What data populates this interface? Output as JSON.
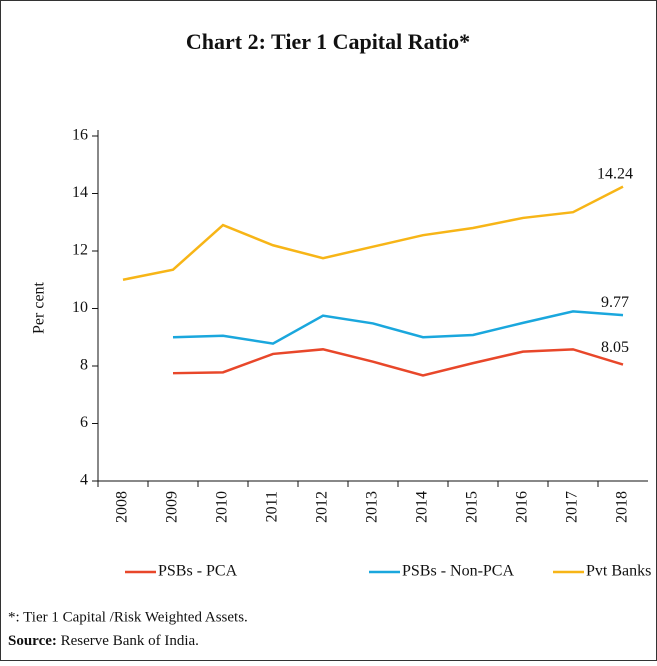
{
  "chart_data": {
    "type": "line",
    "title": "Chart 2: Tier 1 Capital Ratio*",
    "ylabel": "Per cent",
    "categories": [
      "2008",
      "2009",
      "2010",
      "2011",
      "2012",
      "2013",
      "2014",
      "2015",
      "2016",
      "2017",
      "2018"
    ],
    "series": [
      {
        "name": "PSBs - PCA",
        "color": "#e8472a",
        "values": [
          null,
          7.75,
          7.78,
          8.42,
          8.58,
          8.15,
          7.67,
          8.1,
          8.5,
          8.58,
          8.05
        ]
      },
      {
        "name": "PSBs - Non-PCA",
        "color": "#1aa7dd",
        "values": [
          null,
          9.0,
          9.05,
          8.78,
          9.75,
          9.48,
          9.0,
          9.08,
          9.5,
          9.9,
          9.77
        ]
      },
      {
        "name": "Pvt Banks",
        "color": "#f7b517",
        "values": [
          11.0,
          11.35,
          12.9,
          12.2,
          11.75,
          12.15,
          12.55,
          12.8,
          13.15,
          13.35,
          14.24
        ]
      }
    ],
    "ylim": [
      4,
      16
    ],
    "yticks": [
      4,
      6,
      8,
      10,
      12,
      14,
      16
    ],
    "legend": "bottom"
  },
  "notes": {
    "footnote": "*: Tier 1 Capital /Risk Weighted Assets.",
    "source_label": "Source:",
    "source_text": "Reserve Bank of India."
  }
}
